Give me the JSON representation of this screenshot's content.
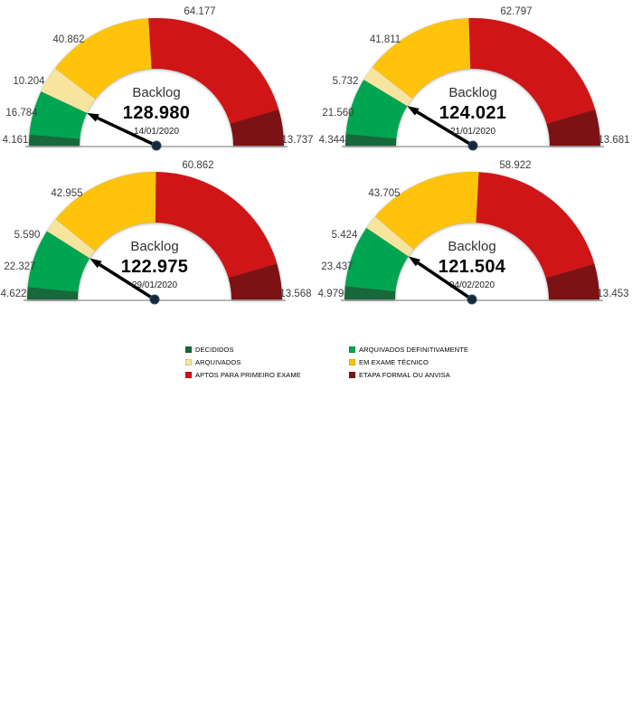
{
  "colors": {
    "decididos": "#17693B",
    "arquivados_definitivamente": "#00A551",
    "arquivados": "#F7E49E",
    "em_exame_tecnico": "#FFC30B",
    "aptos_para_primeiro_exame": "#D01517",
    "etapa_formal_ou_anvisa": "#7D1214",
    "needle": "#000000",
    "pivot_dot": "#16293C",
    "baseline": "#A0A0A0"
  },
  "legend": {
    "position": "bottom-center",
    "columns": [
      [
        {
          "key": "decididos",
          "label": "DECIDIDOS"
        },
        {
          "key": "arquivados",
          "label": "ARQUIVADOS"
        },
        {
          "key": "aptos_para_primeiro_exame",
          "label": "APTOS PARA PRIMEIRO EXAME"
        }
      ],
      [
        {
          "key": "arquivados_definitivamente",
          "label": "ARQUIVADOS DEFINITIVAMENTE"
        },
        {
          "key": "em_exame_tecnico",
          "label": "EM EXAME TÉCNICO"
        },
        {
          "key": "etapa_formal_ou_anvisa",
          "label": "ETAPA FORMAL OU ANVISA"
        }
      ]
    ]
  },
  "chart_data": [
    {
      "type": "pie",
      "subtype": "half-donut-gauge",
      "title": "Backlog",
      "value": 128980,
      "value_label": "128.980",
      "date": "14/01/2020",
      "needle_note": "needle marks total minus backlog, at boundary after ARQUIVADOS DEFINITIVAMENTE",
      "segments": [
        {
          "key": "decididos",
          "label": "4.161",
          "value": 4161
        },
        {
          "key": "arquivados_definitivamente",
          "label": "16.784",
          "value": 16784
        },
        {
          "key": "arquivados",
          "label": "10.204",
          "value": 10204
        },
        {
          "key": "em_exame_tecnico",
          "label": "40.862",
          "value": 40862
        },
        {
          "key": "aptos_para_primeiro_exame",
          "label": "64.177",
          "value": 64177
        },
        {
          "key": "etapa_formal_ou_anvisa",
          "label": "13.737",
          "value": 13737
        }
      ]
    },
    {
      "type": "pie",
      "subtype": "half-donut-gauge",
      "title": "Backlog",
      "value": 124021,
      "value_label": "124.021",
      "date": "21/01/2020",
      "needle_note": "needle marks total minus backlog, at boundary after ARQUIVADOS DEFINITIVAMENTE",
      "segments": [
        {
          "key": "decididos",
          "label": "4.344",
          "value": 4344
        },
        {
          "key": "arquivados_definitivamente",
          "label": "21.560",
          "value": 21560
        },
        {
          "key": "arquivados",
          "label": "5.732",
          "value": 5732
        },
        {
          "key": "em_exame_tecnico",
          "label": "41.811",
          "value": 41811
        },
        {
          "key": "aptos_para_primeiro_exame",
          "label": "62.797",
          "value": 62797
        },
        {
          "key": "etapa_formal_ou_anvisa",
          "label": "13.681",
          "value": 13681
        }
      ]
    },
    {
      "type": "pie",
      "subtype": "half-donut-gauge",
      "title": "Backlog",
      "value": 122975,
      "value_label": "122.975",
      "date": "29/01/2020",
      "needle_note": "needle marks total minus backlog, at boundary after ARQUIVADOS DEFINITIVAMENTE",
      "segments": [
        {
          "key": "decididos",
          "label": "4.622",
          "value": 4622
        },
        {
          "key": "arquivados_definitivamente",
          "label": "22.327",
          "value": 22327
        },
        {
          "key": "arquivados",
          "label": "5.590",
          "value": 5590
        },
        {
          "key": "em_exame_tecnico",
          "label": "42.955",
          "value": 42955
        },
        {
          "key": "aptos_para_primeiro_exame",
          "label": "60.862",
          "value": 60862
        },
        {
          "key": "etapa_formal_ou_anvisa",
          "label": "13.568",
          "value": 13568
        }
      ]
    },
    {
      "type": "pie",
      "subtype": "half-donut-gauge",
      "title": "Backlog",
      "value": 121504,
      "value_label": "121.504",
      "date": "04/02/2020",
      "needle_note": "needle marks total minus backlog, at boundary after ARQUIVADOS DEFINITIVAMENTE",
      "segments": [
        {
          "key": "decididos",
          "label": "4.979",
          "value": 4979
        },
        {
          "key": "arquivados_definitivamente",
          "label": "23.437",
          "value": 23437
        },
        {
          "key": "arquivados",
          "label": "5.424",
          "value": 5424
        },
        {
          "key": "em_exame_tecnico",
          "label": "43.705",
          "value": 43705
        },
        {
          "key": "aptos_para_primeiro_exame",
          "label": "58.922",
          "value": 58922
        },
        {
          "key": "etapa_formal_ou_anvisa",
          "label": "13.453",
          "value": 13453
        }
      ]
    }
  ]
}
